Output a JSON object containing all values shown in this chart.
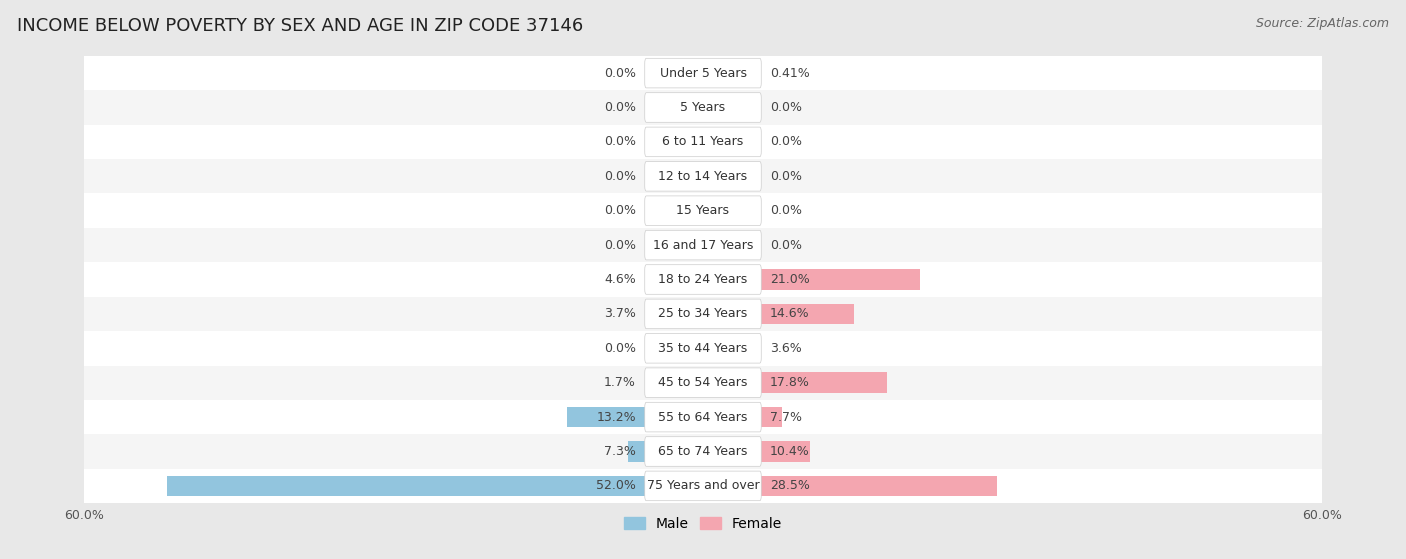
{
  "title": "INCOME BELOW POVERTY BY SEX AND AGE IN ZIP CODE 37146",
  "source": "Source: ZipAtlas.com",
  "categories": [
    "Under 5 Years",
    "5 Years",
    "6 to 11 Years",
    "12 to 14 Years",
    "15 Years",
    "16 and 17 Years",
    "18 to 24 Years",
    "25 to 34 Years",
    "35 to 44 Years",
    "45 to 54 Years",
    "55 to 64 Years",
    "65 to 74 Years",
    "75 Years and over"
  ],
  "male_values": [
    0.0,
    0.0,
    0.0,
    0.0,
    0.0,
    0.0,
    4.6,
    3.7,
    0.0,
    1.7,
    13.2,
    7.3,
    52.0
  ],
  "female_values": [
    0.41,
    0.0,
    0.0,
    0.0,
    0.0,
    0.0,
    21.0,
    14.6,
    3.6,
    17.8,
    7.7,
    10.4,
    28.5
  ],
  "male_color": "#92c5de",
  "female_color": "#f4a6b0",
  "male_label": "Male",
  "female_label": "Female",
  "axis_limit": 60.0,
  "background_color": "#e8e8e8",
  "row_color_odd": "#f5f5f5",
  "row_color_even": "#ffffff",
  "title_fontsize": 13,
  "source_fontsize": 9,
  "label_fontsize": 9,
  "category_fontsize": 9
}
